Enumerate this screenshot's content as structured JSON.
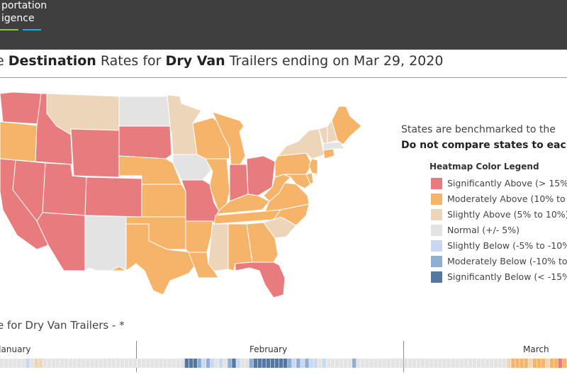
{
  "header": {
    "logo_line1": "portation",
    "logo_line2": "igence"
  },
  "title": {
    "prefix": "e ",
    "bold1": "Destination",
    "mid1": " Rates for ",
    "bold2": "Dry Van",
    "rest": " Trailers ending on Mar 29, 2020"
  },
  "benchmark": {
    "line1": "States are benchmarked to the",
    "line2": "Do not compare states to each"
  },
  "legend": {
    "title": "Heatmap Color Legend",
    "items": [
      {
        "label": "Significantly Above (> 15%)",
        "color": "#e87b7e"
      },
      {
        "label": "Moderately Above (10% to",
        "color": "#f5b469"
      },
      {
        "label": "Slightly Above (5% to 10%)",
        "color": "#ecd5b8"
      },
      {
        "label": "Normal (+/- 5%)",
        "color": "#e3e3e3"
      },
      {
        "label": "Slightly Below (-5% to -10%",
        "color": "#c7d8f0"
      },
      {
        "label": "Moderately Below (-10% to",
        "color": "#8faed3"
      },
      {
        "label": "Significantly Below (< -15%",
        "color": "#5578a3"
      }
    ]
  },
  "timeline": {
    "subtitle": "e for Dry Van Trailers - *",
    "months": [
      "January",
      "February",
      "March"
    ],
    "cells": [
      "n",
      "n",
      "n",
      "n",
      "n",
      "n",
      "sb",
      "n",
      "sa",
      "sa",
      "n",
      "n",
      "n",
      "n",
      "n",
      "n",
      "n",
      "n",
      "n",
      "n",
      "n",
      "n",
      "n",
      "n",
      "n",
      "n",
      "n",
      "n",
      "n",
      "n",
      "n",
      "n",
      "n",
      "n",
      "n",
      "n",
      "n",
      "n",
      "n",
      "n",
      "n",
      "n",
      "n",
      "sgb",
      "sgb",
      "sgb",
      "mb",
      "sb",
      "mb",
      "sb",
      "n",
      "sb",
      "n",
      "mb",
      "sgb",
      "sb",
      "n",
      "n",
      "mb",
      "sgb",
      "sgb",
      "sgb",
      "sgb",
      "sgb",
      "sgb",
      "sgb",
      "sgb",
      "mb",
      "sb",
      "mb",
      "sb",
      "mb",
      "sb",
      "sb",
      "n",
      "sb",
      "n",
      "n",
      "n",
      "n",
      "n",
      "n",
      "mb",
      "n",
      "n",
      "n",
      "n",
      "n",
      "n",
      "n",
      "n",
      "n",
      "n",
      "n",
      "n",
      "n",
      "n",
      "n",
      "n",
      "n",
      "n",
      "n",
      "n",
      "n",
      "n",
      "n",
      "n",
      "n",
      "n",
      "n",
      "n",
      "n",
      "n",
      "n",
      "n",
      "n",
      "n",
      "n",
      "sa",
      "ma",
      "ma",
      "ma",
      "ma",
      "sa",
      "ma",
      "ma",
      "ma",
      "sa",
      "ma",
      "ma",
      "sga",
      "ma"
    ]
  },
  "map": {
    "states": [
      {
        "code": "WA",
        "level": "sga"
      },
      {
        "code": "OR",
        "level": "ma"
      },
      {
        "code": "ID",
        "level": "sga"
      },
      {
        "code": "MT",
        "level": "sa"
      },
      {
        "code": "ND",
        "level": "n"
      },
      {
        "code": "MN",
        "level": "sa"
      },
      {
        "code": "CA",
        "level": "sga"
      },
      {
        "code": "NV",
        "level": "sga"
      },
      {
        "code": "UT",
        "level": "sga"
      },
      {
        "code": "WY",
        "level": "sga"
      },
      {
        "code": "SD",
        "level": "sga"
      },
      {
        "code": "CO",
        "level": "sga"
      },
      {
        "code": "NE",
        "level": "ma"
      },
      {
        "code": "KS",
        "level": "ma"
      },
      {
        "code": "AZ",
        "level": "sga"
      },
      {
        "code": "NM",
        "level": "n"
      },
      {
        "code": "TX",
        "level": "ma"
      },
      {
        "code": "OK",
        "level": "ma"
      },
      {
        "code": "IA",
        "level": "n"
      },
      {
        "code": "MO",
        "level": "sga"
      },
      {
        "code": "AR",
        "level": "ma"
      },
      {
        "code": "LA",
        "level": "ma"
      },
      {
        "code": "WI",
        "level": "ma"
      },
      {
        "code": "IL",
        "level": "ma"
      },
      {
        "code": "MI",
        "level": "ma"
      },
      {
        "code": "IN",
        "level": "sga"
      },
      {
        "code": "OH",
        "level": "sga"
      },
      {
        "code": "KY",
        "level": "ma"
      },
      {
        "code": "TN",
        "level": "ma"
      },
      {
        "code": "MS",
        "level": "sa"
      },
      {
        "code": "AL",
        "level": "ma"
      },
      {
        "code": "GA",
        "level": "ma"
      },
      {
        "code": "FL",
        "level": "sga"
      },
      {
        "code": "SC",
        "level": "sa"
      },
      {
        "code": "NC",
        "level": "ma"
      },
      {
        "code": "VA",
        "level": "ma"
      },
      {
        "code": "WV",
        "level": "ma"
      },
      {
        "code": "PA",
        "level": "ma"
      },
      {
        "code": "NY",
        "level": "sa"
      },
      {
        "code": "ME",
        "level": "ma"
      },
      {
        "code": "VT",
        "level": "sa"
      },
      {
        "code": "NH",
        "level": "sa"
      },
      {
        "code": "MA",
        "level": "n"
      },
      {
        "code": "NJ",
        "level": "ma"
      },
      {
        "code": "MD",
        "level": "ma"
      },
      {
        "code": "DE",
        "level": "ma"
      },
      {
        "code": "CT",
        "level": "ma"
      }
    ]
  },
  "colors": {
    "sga": "#e87b7e",
    "ma": "#f5b469",
    "sa": "#ecd5b8",
    "n": "#e3e3e3",
    "sb": "#c7d8f0",
    "mb": "#8faed3",
    "sgb": "#5578a3"
  }
}
